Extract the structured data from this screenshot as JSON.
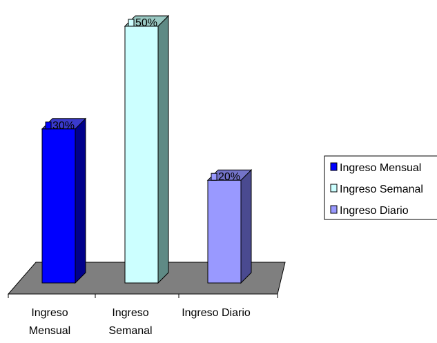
{
  "chart_data": {
    "type": "bar",
    "categories": [
      "Ingreso Mensual",
      "Ingreso Semanal",
      "Ingreso Diario"
    ],
    "category_label_lines": [
      [
        "Ingreso",
        "Mensual"
      ],
      [
        "Ingreso",
        "Semanal"
      ],
      [
        "Ingreso Diario"
      ]
    ],
    "values": [
      30,
      50,
      20
    ],
    "data_labels": [
      "30%",
      "50%",
      "20%"
    ],
    "value_unit": "%",
    "title": "",
    "xlabel": "",
    "ylabel": "",
    "ylim": [
      0,
      50
    ],
    "grid": false,
    "three_d": true,
    "legend": {
      "position": "right",
      "entries": [
        "Ingreso Mensual",
        "Ingreso Semanal",
        "Ingreso Diario"
      ]
    },
    "colors": {
      "bars": [
        "#0000FF",
        "#CCFFFF",
        "#9999FF"
      ],
      "sides": [
        "#00008B",
        "#5F8A85",
        "#4A4A90"
      ],
      "tops": [
        "#3A3ACC",
        "#99C8C2",
        "#7373C8"
      ],
      "floor": "#7F7F7F",
      "floor_stroke": "#000000"
    }
  }
}
